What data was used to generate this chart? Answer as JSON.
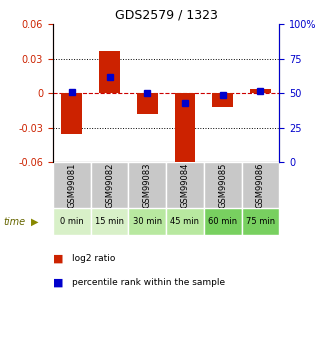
{
  "title": "GDS2579 / 1323",
  "samples": [
    "GSM99081",
    "GSM99082",
    "GSM99083",
    "GSM99084",
    "GSM99085",
    "GSM99086"
  ],
  "time_labels": [
    "0 min",
    "15 min",
    "30 min",
    "45 min",
    "60 min",
    "75 min"
  ],
  "time_colors": [
    "#d8f0c8",
    "#d8f0c8",
    "#b8e8a0",
    "#b8e8a0",
    "#78d060",
    "#78d060"
  ],
  "log2_values": [
    -0.035,
    0.037,
    -0.018,
    -0.063,
    -0.012,
    0.004
  ],
  "percentile_values": [
    51,
    62,
    50,
    43,
    49,
    52
  ],
  "ylim_left": [
    -0.06,
    0.06
  ],
  "ylim_right": [
    0,
    100
  ],
  "yticks_left": [
    -0.06,
    -0.03,
    0,
    0.03,
    0.06
  ],
  "yticks_right": [
    0,
    25,
    50,
    75,
    100
  ],
  "bar_color": "#cc2200",
  "dot_color": "#0000cc",
  "zero_line_color": "#cc0000",
  "grid_color": "#000000",
  "bar_width": 0.55,
  "legend_label_bar": "log2 ratio",
  "legend_label_dot": "percentile rank within the sample",
  "sample_box_color": "#c8c8c8",
  "time_arrow_color": "#888800",
  "time_label_color": "#666600"
}
